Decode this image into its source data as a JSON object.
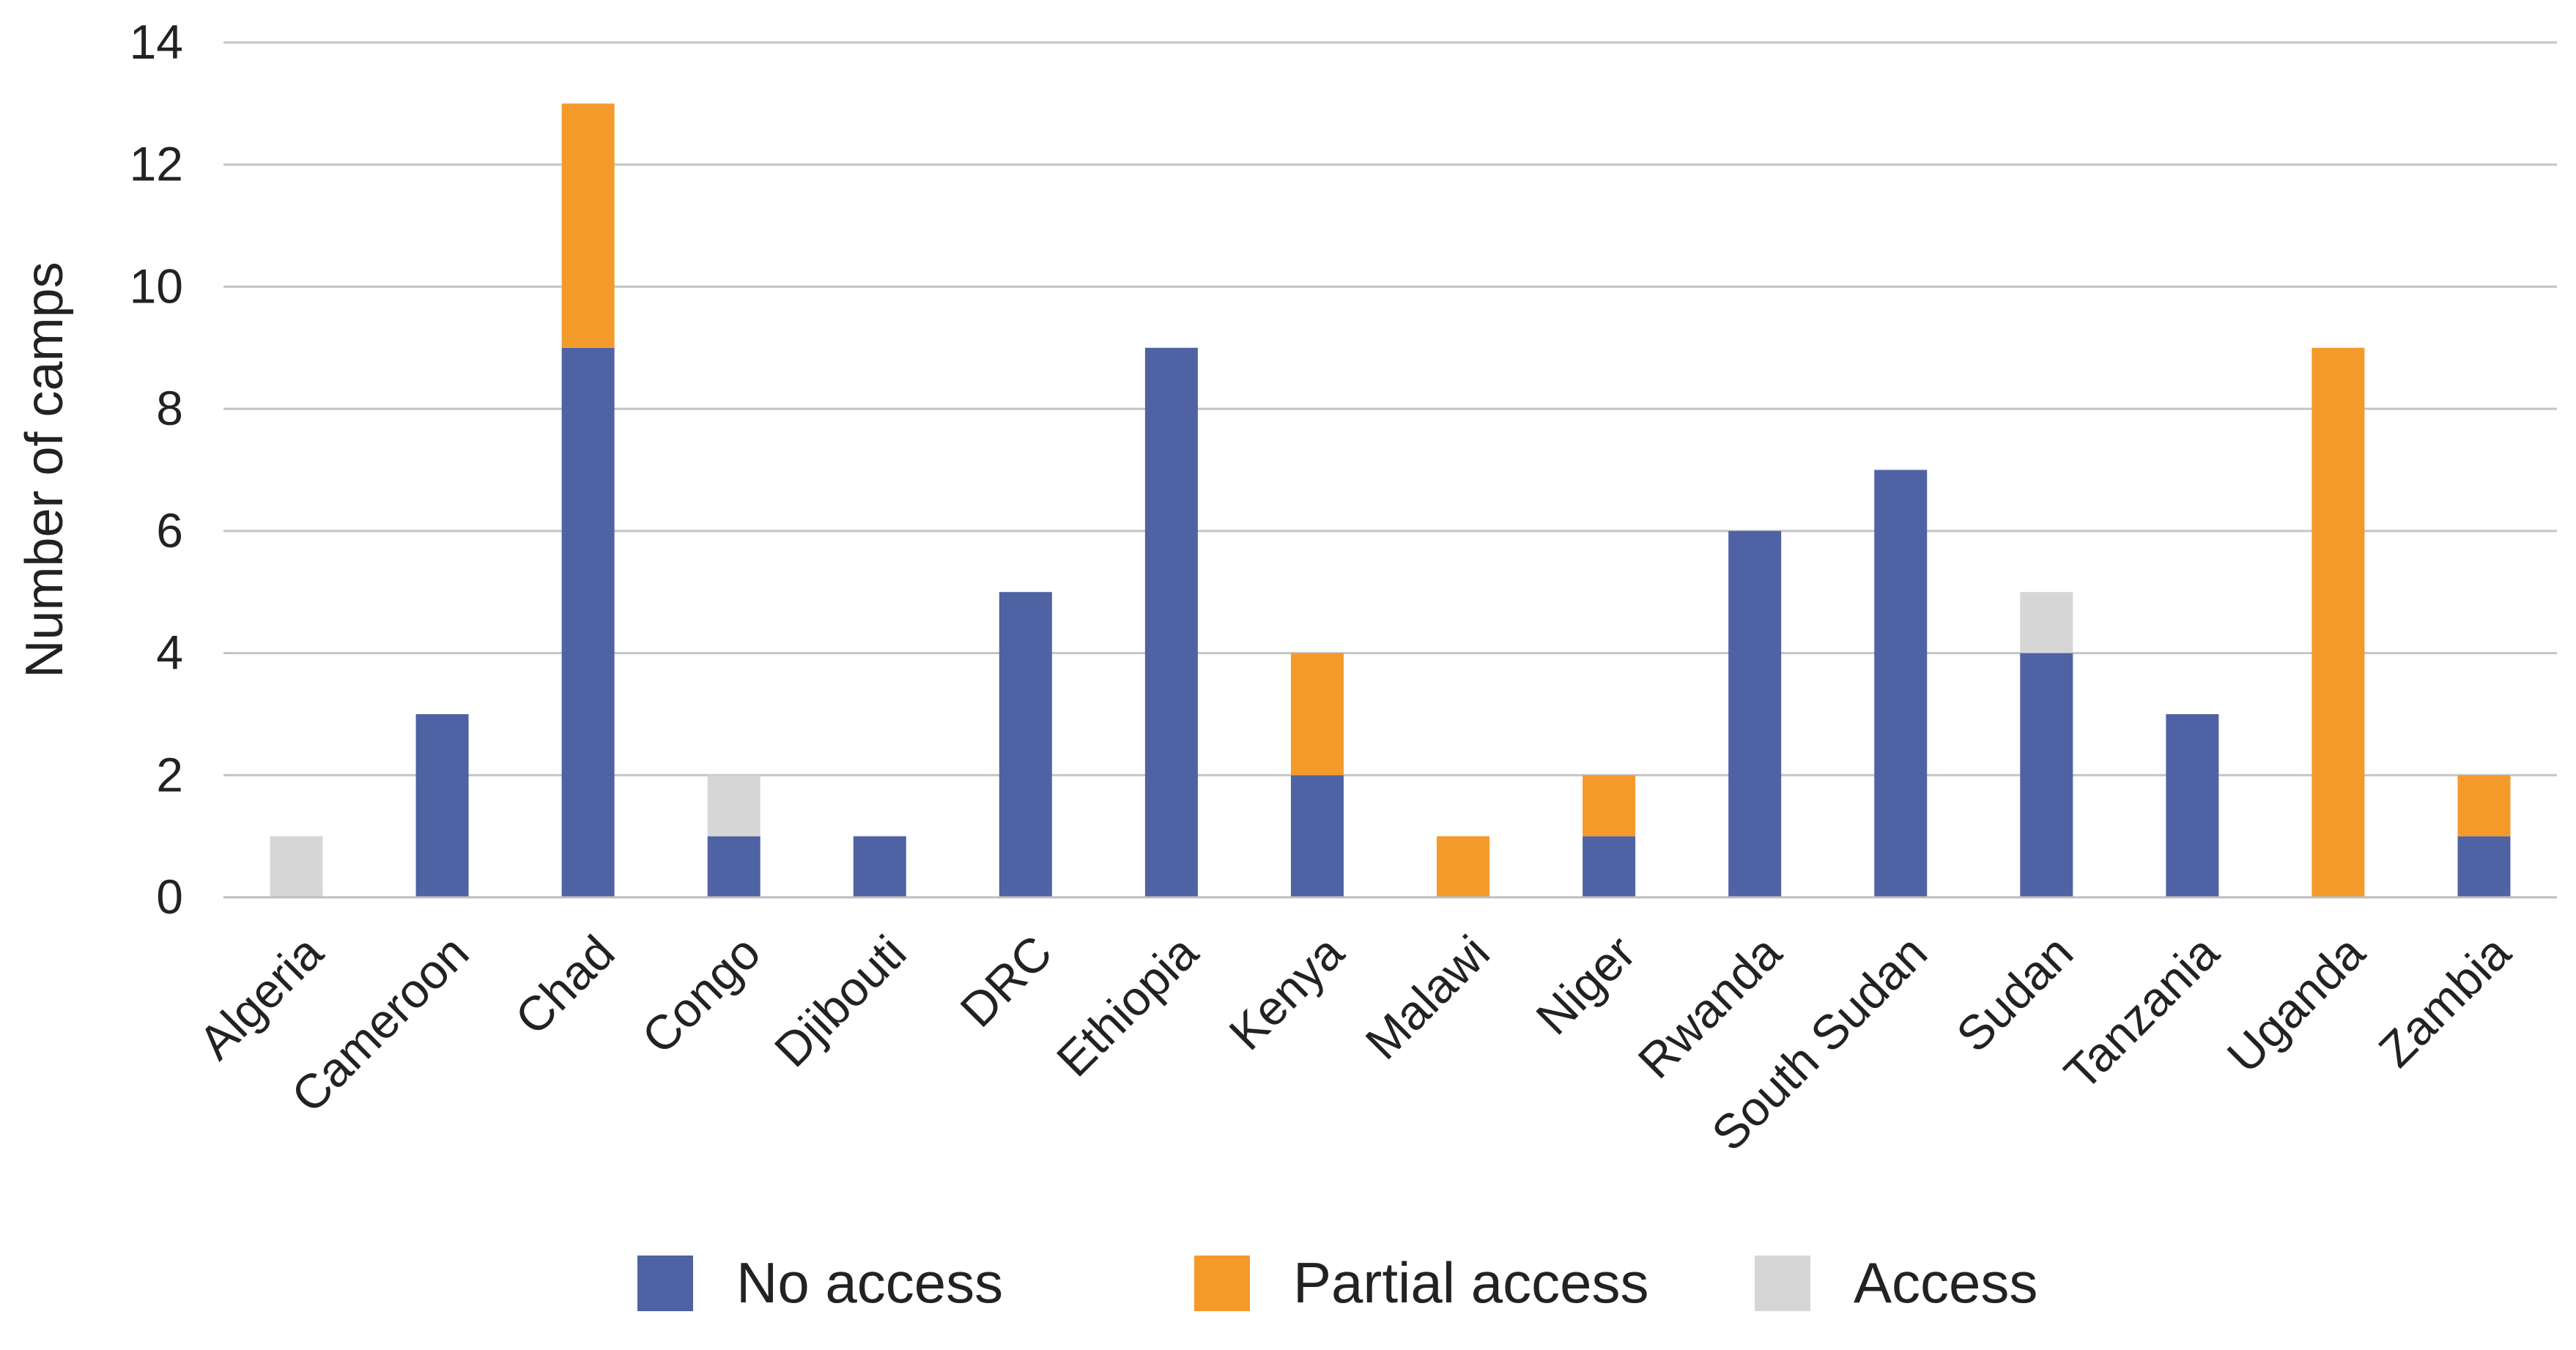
{
  "chart_data": {
    "type": "bar",
    "stacked": true,
    "title": "",
    "xlabel": "",
    "ylabel": "Number of camps",
    "ylim": [
      0,
      14
    ],
    "yticks": [
      "0",
      "2",
      "4",
      "6",
      "8",
      "10",
      "12",
      "14"
    ],
    "grid": "horizontal",
    "legend_position": "bottom",
    "categories": [
      "Algeria",
      "Cameroon",
      "Chad",
      "Congo",
      "Djibouti",
      "DRC",
      "Ethiopia",
      "Kenya",
      "Malawi",
      "Niger",
      "Rwanda",
      "South Sudan",
      "Sudan",
      "Tanzania",
      "Uganda",
      "Zambia"
    ],
    "series": [
      {
        "name": "No access",
        "color": "#4f62a3",
        "values": [
          0,
          3,
          9,
          1,
          1,
          5,
          9,
          2,
          0,
          1,
          6,
          7,
          4,
          3,
          0,
          1
        ]
      },
      {
        "name": "Partial access",
        "color": "#f39a2b",
        "values": [
          0,
          0,
          4,
          0,
          0,
          0,
          0,
          2,
          1,
          1,
          0,
          0,
          0,
          0,
          9,
          1
        ]
      },
      {
        "name": "Access",
        "color": "#d6d6d6",
        "values": [
          1,
          0,
          0,
          1,
          0,
          0,
          0,
          0,
          0,
          0,
          0,
          0,
          1,
          0,
          0,
          0
        ]
      }
    ]
  }
}
